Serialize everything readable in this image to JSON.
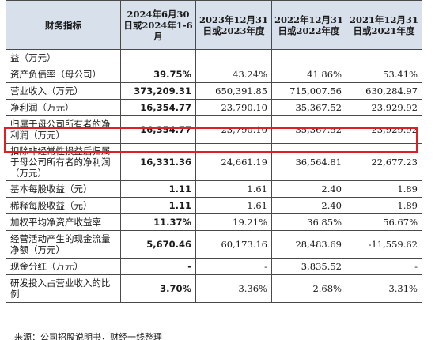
{
  "table": {
    "headers": [
      "财务指标",
      "2024年6月30日或2024年1-6月",
      "2023年12月31日或2023年度",
      "2022年12月31日或2022年度",
      "2021年12月31日或2021年度"
    ],
    "rows": [
      {
        "label": "益（万元）",
        "values": [
          "",
          "",
          "",
          ""
        ]
      },
      {
        "label": "资产负债率（母公司）",
        "values": [
          "39.75%",
          "43.24%",
          "41.86%",
          "53.41%"
        ]
      },
      {
        "label": "营业收入（万元）",
        "values": [
          "373,209.31",
          "650,391.85",
          "715,007.56",
          "630,284.97"
        ]
      },
      {
        "label": "净利润（万元）",
        "values": [
          "16,354.77",
          "23,790.10",
          "35,367.52",
          "23,929.92"
        ]
      },
      {
        "label": "归属于母公司所有者的净利润（万元）",
        "values": [
          "16,354.77",
          "23,790.10",
          "35,367.52",
          "23,929.92"
        ]
      },
      {
        "label": "扣除非经常性损益后归属于母公司所有者的净利润（万元）",
        "values": [
          "16,331.36",
          "24,661.19",
          "36,564.81",
          "22,677.23"
        ]
      },
      {
        "label": "基本每股收益（元）",
        "values": [
          "1.11",
          "1.61",
          "2.40",
          "1.89"
        ]
      },
      {
        "label": "稀释每股收益（元）",
        "values": [
          "1.11",
          "1.61",
          "2.40",
          "1.89"
        ]
      },
      {
        "label": "加权平均净资产收益率",
        "values": [
          "11.37%",
          "19.21%",
          "36.85%",
          "56.67%"
        ]
      },
      {
        "label": "经营活动产生的现金流量净额（万元）",
        "values": [
          "5,670.46",
          "60,173.16",
          "28,483.69",
          "-11,559.62"
        ]
      },
      {
        "label": "现金分红（万元）",
        "values": [
          "-",
          "-",
          "3,835.52",
          "-"
        ]
      },
      {
        "label": "研发投入占营业收入的比例",
        "values": [
          "3.70%",
          "3.36%",
          "2.68%",
          "3.31%"
        ]
      }
    ]
  },
  "caption": "来源：公司招股说明书，财经一线整理"
}
